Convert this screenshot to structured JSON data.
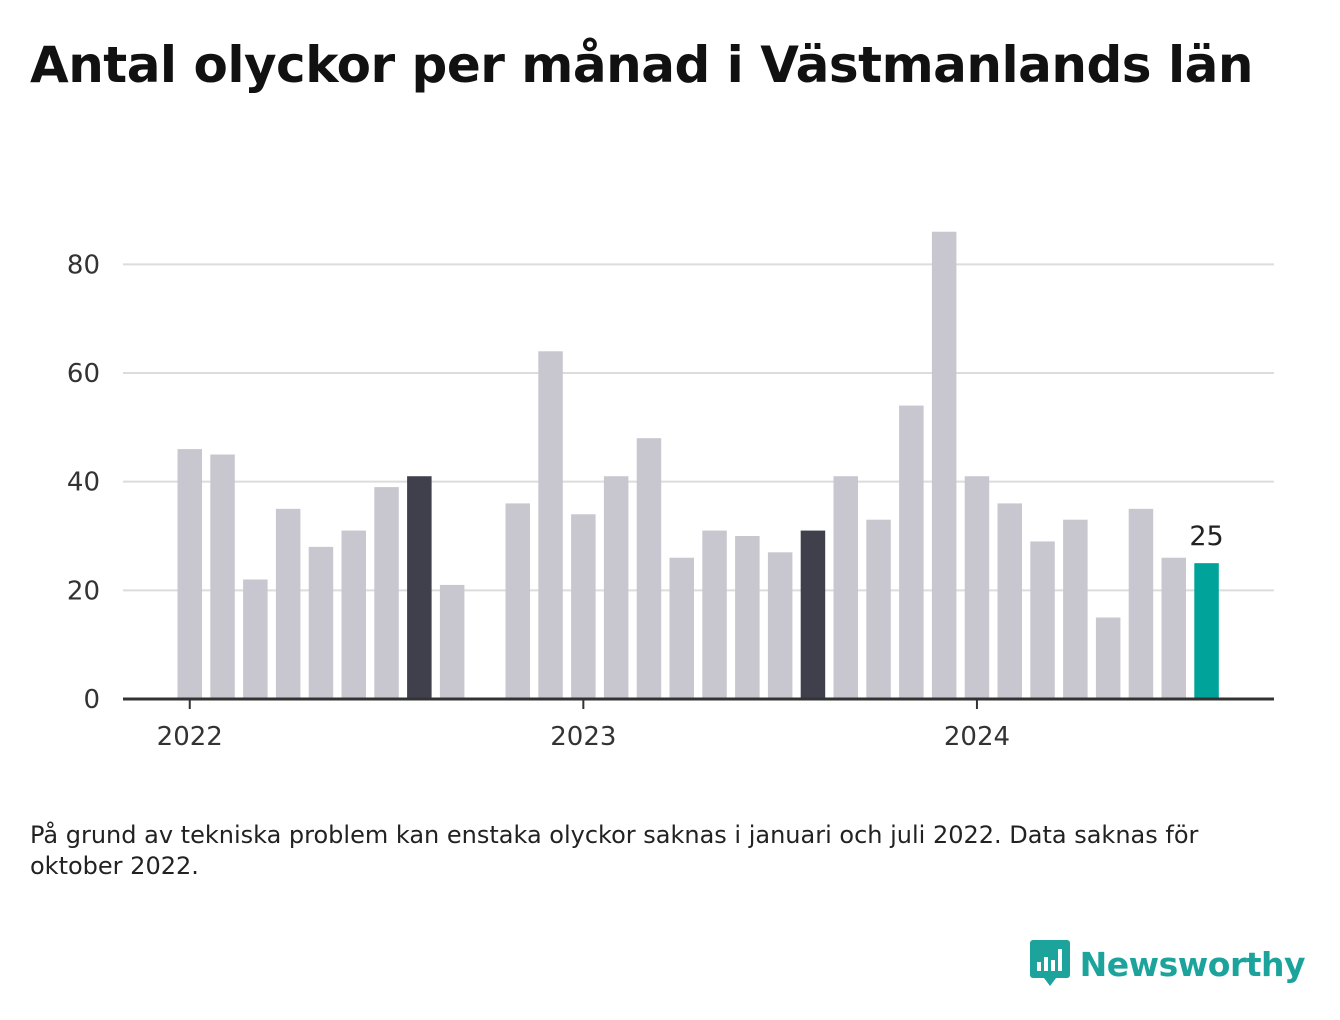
{
  "title": "Antal olyckor per månad i Västmanlands län",
  "footnote": "På grund av tekniska problem kan enstaka olyckor saknas i januari och juli 2022. Data saknas för oktober 2022.",
  "brand": {
    "name": "Newsworthy",
    "icon": "newsworthy-logo-icon",
    "color": "#1ba39c"
  },
  "colors": {
    "default": "#c8c7cf",
    "highlight": "#40404d",
    "latest": "#00a39a",
    "grid": "#dcdcdc",
    "axis": "#333333"
  },
  "chart_data": {
    "type": "bar",
    "title": "Antal olyckor per månad i Västmanlands län",
    "xlabel": "",
    "ylabel": "",
    "ylim": [
      0,
      90
    ],
    "yticks": [
      0,
      20,
      40,
      60,
      80
    ],
    "year_labels": [
      "2022",
      "2023",
      "2024"
    ],
    "grid": true,
    "legend": "none",
    "categories": [
      "2022-01",
      "2022-02",
      "2022-03",
      "2022-04",
      "2022-05",
      "2022-06",
      "2022-07",
      "2022-08",
      "2022-09",
      "2022-10",
      "2022-11",
      "2022-12",
      "2023-01",
      "2023-02",
      "2023-03",
      "2023-04",
      "2023-05",
      "2023-06",
      "2023-07",
      "2023-08",
      "2023-09",
      "2023-10",
      "2023-11",
      "2023-12",
      "2024-01",
      "2024-02",
      "2024-03",
      "2024-04",
      "2024-05",
      "2024-06",
      "2024-07",
      "2024-08"
    ],
    "values": [
      46,
      45,
      22,
      35,
      28,
      31,
      39,
      41,
      21,
      null,
      36,
      64,
      34,
      41,
      48,
      26,
      31,
      30,
      27,
      31,
      41,
      33,
      54,
      86,
      41,
      36,
      29,
      33,
      15,
      35,
      26,
      25
    ],
    "highlighted": [
      "2022-08",
      "2023-08"
    ],
    "latest": "2024-08",
    "annotations": [
      {
        "category": "2024-08",
        "text": "25"
      }
    ]
  }
}
